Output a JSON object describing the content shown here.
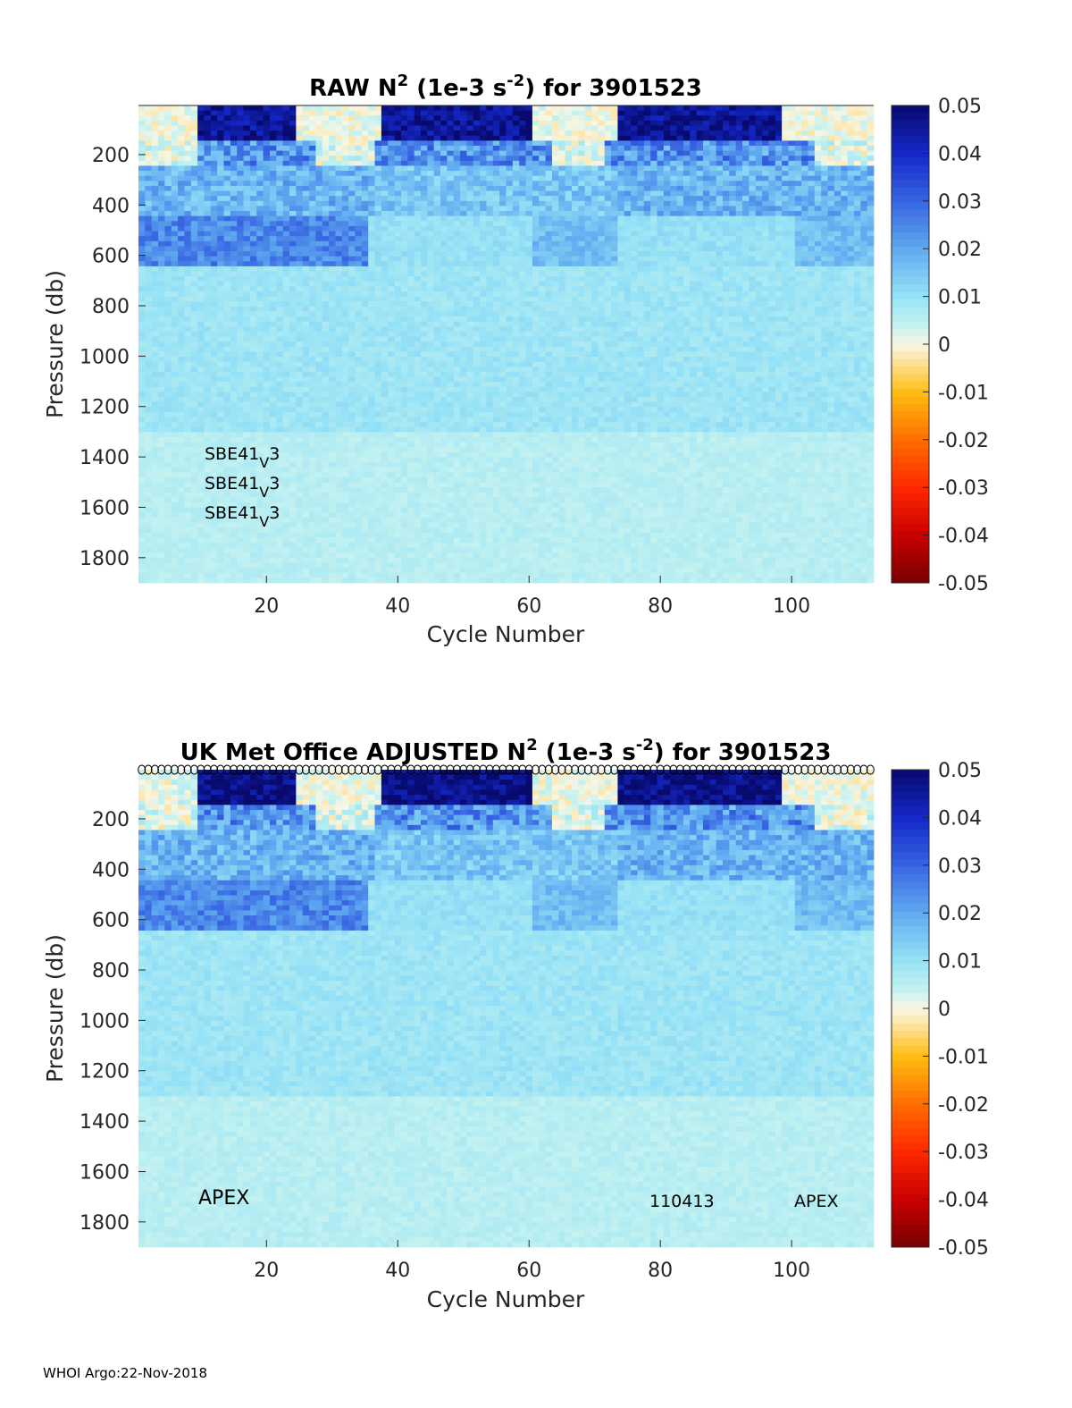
{
  "chart_data": [
    {
      "type": "heatmap",
      "title": "RAW N² (1e-3 s⁻²) for 3901523",
      "title_parts": {
        "a": "RAW N",
        "sup1": "2",
        "b": " (1e-3 s",
        "sup2": "-2",
        "c": ") for 3901523"
      },
      "xlabel": "Cycle Number",
      "ylabel": "Pressure (db)",
      "xlim": [
        1,
        112
      ],
      "ylim": [
        1900,
        5
      ],
      "xticks": [
        20,
        40,
        60,
        80,
        100
      ],
      "yticks": [
        200,
        400,
        600,
        800,
        1000,
        1200,
        1400,
        1600,
        1800
      ],
      "clim": [
        -0.05,
        0.05
      ],
      "cticks": [
        "0.05",
        "0.04",
        "0.03",
        "0.02",
        "0.01",
        "0",
        "-0.01",
        "-0.02",
        "-0.03",
        "-0.04",
        "-0.05"
      ],
      "annotations": [
        {
          "base": "SBE41",
          "sub": "V",
          "tail": "3"
        },
        {
          "base": "SBE41",
          "sub": "V",
          "tail": "3"
        },
        {
          "base": "SBE41",
          "sub": "V",
          "tail": "3"
        }
      ]
    },
    {
      "type": "heatmap",
      "title": "UK Met Office  ADJUSTED N² (1e-3 s⁻²) for 3901523",
      "title_parts": {
        "a": "UK Met Office  ADJUSTED N",
        "sup1": "2",
        "b": " (1e-3 s",
        "sup2": "-2",
        "c": ") for 3901523"
      },
      "xlabel": "Cycle Number",
      "ylabel": "Pressure (db)",
      "xlim": [
        1,
        112
      ],
      "ylim": [
        1900,
        5
      ],
      "xticks": [
        20,
        40,
        60,
        80,
        100
      ],
      "yticks": [
        200,
        400,
        600,
        800,
        1000,
        1200,
        1400,
        1600,
        1800
      ],
      "clim": [
        -0.05,
        0.05
      ],
      "cticks": [
        "0.05",
        "0.04",
        "0.03",
        "0.02",
        "0.01",
        "0",
        "-0.01",
        "-0.02",
        "-0.03",
        "-0.04",
        "-0.05"
      ],
      "profile_markers": "circle",
      "annotations": [
        "APEX",
        "110413",
        "APEX"
      ]
    }
  ],
  "footer": "WHOI Argo:22-Nov-2018",
  "colors": {
    "deep": "#0a0a78",
    "strong": "#2a43d6",
    "mid": "#4f8fe8",
    "light": "#9ad8f4",
    "pale": "#bff0f2",
    "zero": "#f7f2e0",
    "negative": "#ff4a1a"
  }
}
